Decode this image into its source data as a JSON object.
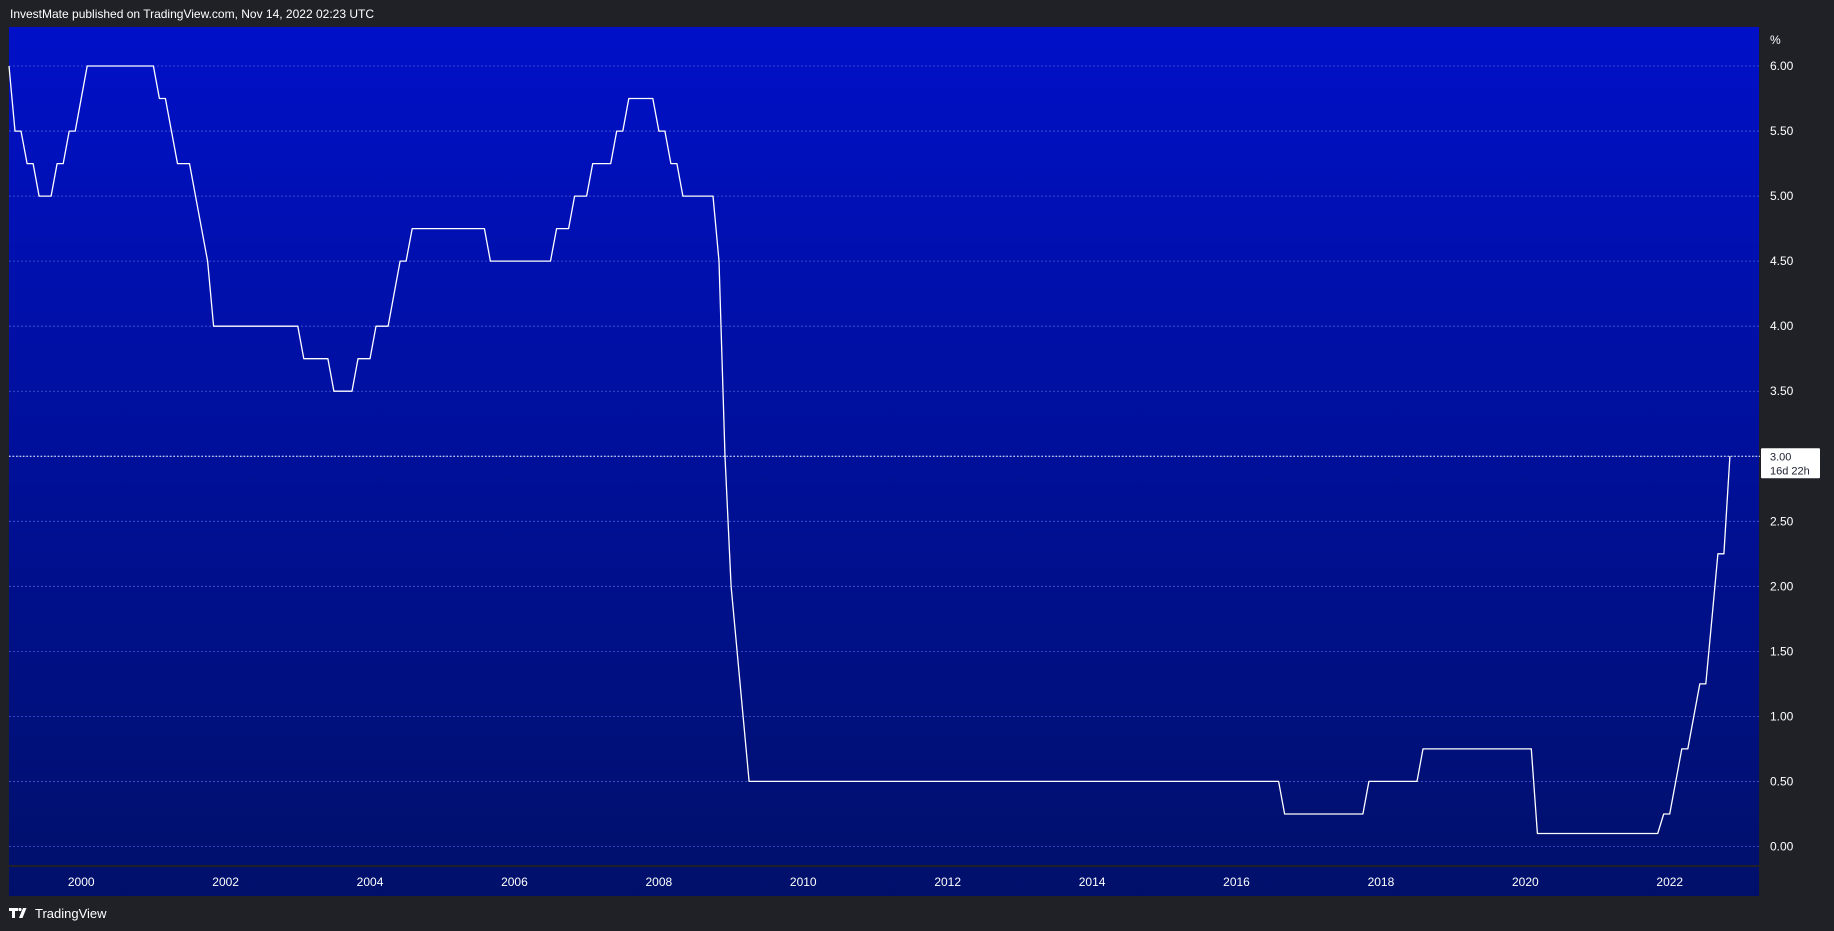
{
  "header": {
    "published_text": "InvestMate published on TradingView.com, Nov 14, 2022 02:23 UTC"
  },
  "footer": {
    "brand_label": "TradingView",
    "logo_icon": "tradingview-logo-icon"
  },
  "chart_data": {
    "type": "line",
    "title": "",
    "xlabel": "",
    "ylabel": "",
    "y_unit": "%",
    "ylim": [
      -0.15,
      6.3
    ],
    "x_range": [
      "1999-01",
      "2023-04"
    ],
    "x_ticks": [
      "2000",
      "2002",
      "2004",
      "2006",
      "2008",
      "2010",
      "2012",
      "2014",
      "2016",
      "2018",
      "2020",
      "2022"
    ],
    "y_ticks": [
      "0.00",
      "0.50",
      "1.00",
      "1.50",
      "2.00",
      "2.50",
      "3.00",
      "3.50",
      "4.00",
      "4.50",
      "5.00",
      "5.50",
      "6.00"
    ],
    "grid": true,
    "legend": "none",
    "colors": {
      "line": "#ffffff",
      "background_top": "#0010c8",
      "background_bottom": "#00106a",
      "grid": "#4a5bd6",
      "frame": "#1f2127"
    },
    "last_value": {
      "value": "3.00",
      "countdown": "16d 22h"
    },
    "series": [
      {
        "points": [
          [
            "1999-01",
            6.0
          ],
          [
            "1999-02",
            5.5
          ],
          [
            "1999-03",
            5.5
          ],
          [
            "1999-04",
            5.25
          ],
          [
            "1999-05",
            5.25
          ],
          [
            "1999-06",
            5.0
          ],
          [
            "1999-08",
            5.0
          ],
          [
            "1999-09",
            5.25
          ],
          [
            "1999-10",
            5.25
          ],
          [
            "1999-11",
            5.5
          ],
          [
            "1999-12",
            5.5
          ],
          [
            "2000-02",
            6.0
          ],
          [
            "2001-01",
            6.0
          ],
          [
            "2001-02",
            5.75
          ],
          [
            "2001-03",
            5.75
          ],
          [
            "2001-05",
            5.25
          ],
          [
            "2001-07",
            5.25
          ],
          [
            "2001-10",
            4.5
          ],
          [
            "2001-11",
            4.0
          ],
          [
            "2003-01",
            4.0
          ],
          [
            "2003-02",
            3.75
          ],
          [
            "2003-06",
            3.75
          ],
          [
            "2003-07",
            3.5
          ],
          [
            "2003-10",
            3.5
          ],
          [
            "2003-11",
            3.75
          ],
          [
            "2004-01",
            3.75
          ],
          [
            "2004-02",
            4.0
          ],
          [
            "2004-04",
            4.0
          ],
          [
            "2004-06",
            4.5
          ],
          [
            "2004-07",
            4.5
          ],
          [
            "2004-08",
            4.75
          ],
          [
            "2005-08",
            4.75
          ],
          [
            "2005-09",
            4.5
          ],
          [
            "2006-07",
            4.5
          ],
          [
            "2006-08",
            4.75
          ],
          [
            "2006-10",
            4.75
          ],
          [
            "2006-11",
            5.0
          ],
          [
            "2007-01",
            5.0
          ],
          [
            "2007-02",
            5.25
          ],
          [
            "2007-05",
            5.25
          ],
          [
            "2007-06",
            5.5
          ],
          [
            "2007-07",
            5.5
          ],
          [
            "2007-08",
            5.75
          ],
          [
            "2007-12",
            5.75
          ],
          [
            "2008-01",
            5.5
          ],
          [
            "2008-02",
            5.5
          ],
          [
            "2008-03",
            5.25
          ],
          [
            "2008-04",
            5.25
          ],
          [
            "2008-05",
            5.0
          ],
          [
            "2008-10",
            5.0
          ],
          [
            "2008-11",
            4.5
          ],
          [
            "2008-12",
            3.0
          ],
          [
            "2009-01",
            2.0
          ],
          [
            "2009-03",
            1.0
          ],
          [
            "2009-04",
            0.5
          ],
          [
            "2016-08",
            0.5
          ],
          [
            "2016-09",
            0.25
          ],
          [
            "2017-10",
            0.25
          ],
          [
            "2017-11",
            0.5
          ],
          [
            "2018-07",
            0.5
          ],
          [
            "2018-08",
            0.75
          ],
          [
            "2020-02",
            0.75
          ],
          [
            "2020-03",
            0.1
          ],
          [
            "2021-11",
            0.1
          ],
          [
            "2021-12",
            0.25
          ],
          [
            "2022-01",
            0.25
          ],
          [
            "2022-03",
            0.75
          ],
          [
            "2022-04",
            0.75
          ],
          [
            "2022-06",
            1.25
          ],
          [
            "2022-07",
            1.25
          ],
          [
            "2022-08",
            1.75
          ],
          [
            "2022-09",
            2.25
          ],
          [
            "2022-10",
            2.25
          ],
          [
            "2022-11",
            3.0
          ]
        ]
      }
    ]
  }
}
